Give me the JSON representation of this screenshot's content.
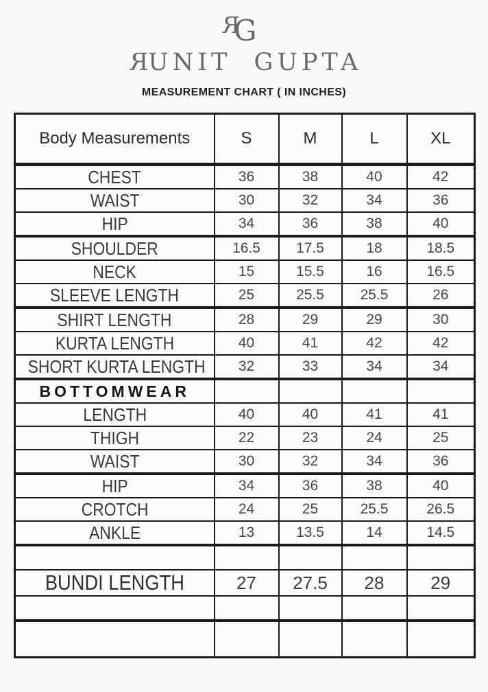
{
  "brand": {
    "logo_r": "R",
    "logo_g": "G",
    "name_first_letter": "R",
    "name_rest": "UNIT GUPTA",
    "subtitle": "MEASUREMENT CHART ( IN INCHES)",
    "brand_color": "#6b6769"
  },
  "colors": {
    "background": "#fbfafa",
    "table_border": "#1a1a1a",
    "table_text": "#3b3b3b"
  },
  "table": {
    "columns": [
      "Body Measurements",
      "S",
      "M",
      "L",
      "XL"
    ],
    "rows": [
      {
        "label": "CHEST",
        "values": [
          "36",
          "38",
          "40",
          "42"
        ]
      },
      {
        "label": "WAIST",
        "values": [
          "30",
          "32",
          "34",
          "36"
        ]
      },
      {
        "label": "HIP",
        "values": [
          "34",
          "36",
          "38",
          "40"
        ],
        "thick_bottom": true
      },
      {
        "label": "SHOULDER",
        "values": [
          "16.5",
          "17.5",
          "18",
          "18.5"
        ]
      },
      {
        "label": "NECK",
        "values": [
          "15",
          "15.5",
          "16",
          "16.5"
        ]
      },
      {
        "label": "SLEEVE LENGTH",
        "values": [
          "25",
          "25.5",
          "25.5",
          "26"
        ],
        "thick_bottom": true
      },
      {
        "label": "SHIRT LENGTH",
        "values": [
          "28",
          "29",
          "29",
          "30"
        ]
      },
      {
        "label": "KURTA LENGTH",
        "values": [
          "40",
          "41",
          "42",
          "42"
        ]
      },
      {
        "label": "SHORT KURTA LENGTH",
        "values": [
          "32",
          "33",
          "34",
          "34"
        ],
        "thick_bottom": true
      },
      {
        "label": "BOTTOMWEAR",
        "values": [
          "",
          "",
          "",
          ""
        ],
        "type": "section"
      },
      {
        "label": "LENGTH",
        "values": [
          "40",
          "40",
          "41",
          "41"
        ]
      },
      {
        "label": "THIGH",
        "values": [
          "22",
          "23",
          "24",
          "25"
        ]
      },
      {
        "label": "WAIST",
        "values": [
          "30",
          "32",
          "34",
          "36"
        ],
        "thick_bottom": true
      },
      {
        "label": "HIP",
        "values": [
          "34",
          "36",
          "38",
          "40"
        ]
      },
      {
        "label": "CROTCH",
        "values": [
          "24",
          "25",
          "25.5",
          "26.5"
        ]
      },
      {
        "label": "ANKLE",
        "values": [
          "13",
          "13.5",
          "14",
          "14.5"
        ],
        "thick_bottom": true
      },
      {
        "label": "",
        "values": [
          "",
          "",
          "",
          ""
        ],
        "type": "spacer"
      },
      {
        "label": "BUNDI LENGTH",
        "values": [
          "27",
          "27.5",
          "28",
          "29"
        ],
        "type": "highlight"
      },
      {
        "label": "",
        "values": [
          "",
          "",
          "",
          ""
        ],
        "type": "spacer",
        "thick_bottom": true
      },
      {
        "label": "",
        "values": [
          "",
          "",
          "",
          ""
        ],
        "type": "spacer-tall"
      }
    ]
  }
}
